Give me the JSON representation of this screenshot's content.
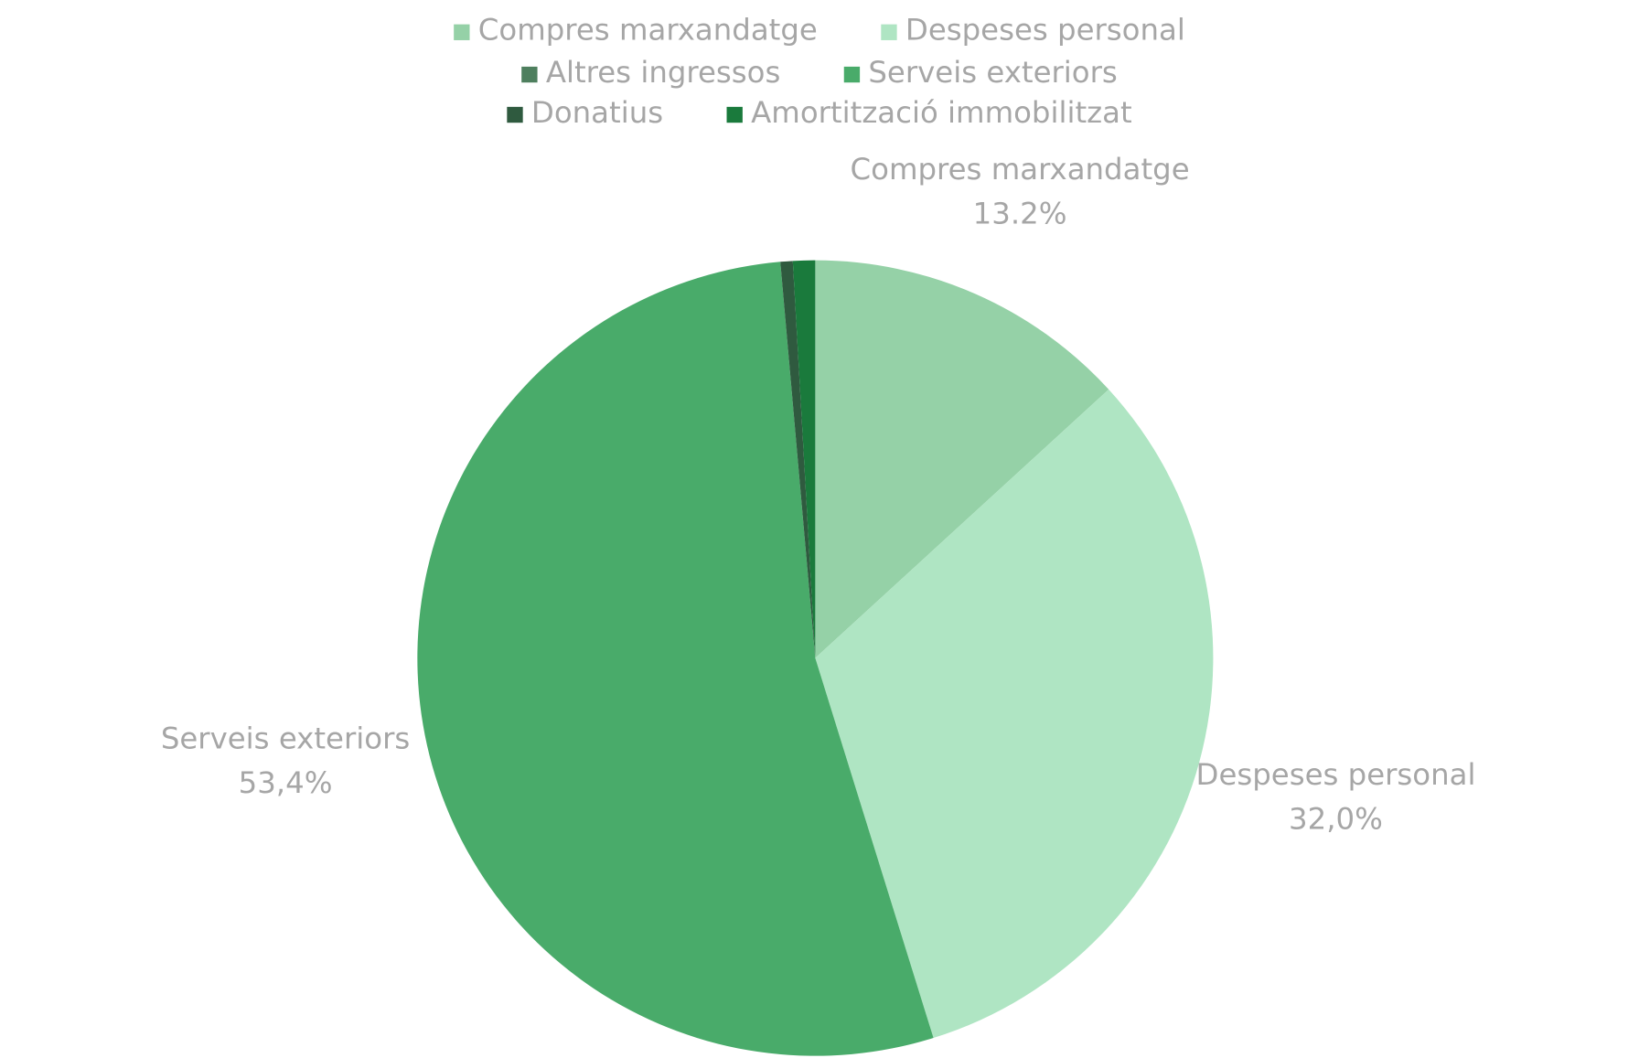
{
  "chart_data": {
    "type": "pie",
    "categories": [
      "Compres marxandatge",
      "Despeses personal",
      "Altres ingressos",
      "Serveis exteriors",
      "Donatius",
      "Amortització immobilitzat"
    ],
    "values": [
      13.2,
      32.0,
      0,
      53.4,
      0.5,
      0.9
    ],
    "value_labels": [
      "13.2%",
      "32,0%",
      null,
      "53,4%",
      null,
      null
    ],
    "colors": [
      "#95d1a7",
      "#afe5c3",
      "#4e7f5e",
      "#49ab6a",
      "#2f5a3f",
      "#1a7a3c"
    ],
    "legend": "top"
  }
}
